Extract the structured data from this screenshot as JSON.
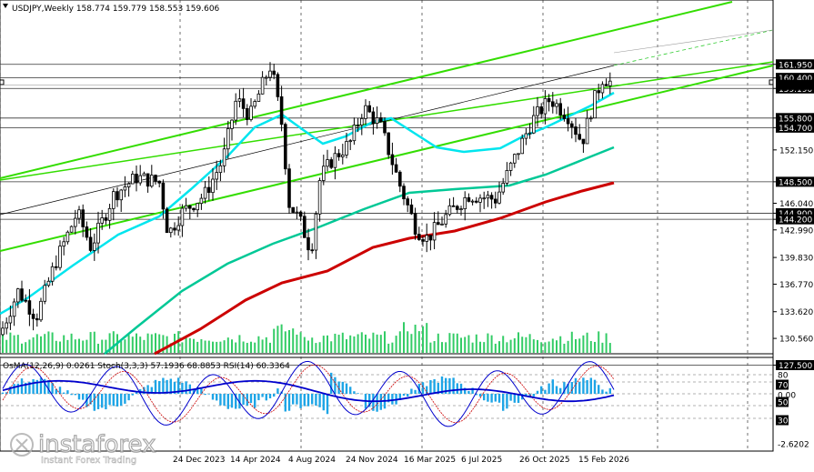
{
  "header": {
    "symbol": "USDJPY,Weekly",
    "open": "158.774",
    "high": "159.779",
    "low": "158.553",
    "close": "159.606"
  },
  "indicator_header": {
    "osma": "OsMA(12,26,9) 0.0261",
    "stoch": "Stoch(3,3,3) 57.1936 68.8853",
    "rsi": "RSI(14) 60.3364"
  },
  "watermark": {
    "brand": "instaforex",
    "tagline": "Instant Forex Trading"
  },
  "colors": {
    "candle": "#000000",
    "ema_short": "#00e5ee",
    "ema_mid": "#00c896",
    "ema_long": "#cc0000",
    "channel": "#33dd00",
    "trend": "#000000",
    "volume": "#33cc66",
    "osma_hist": "#1ea5e6",
    "stoch_main": "#0000cc",
    "stoch_signal": "#cc0000",
    "rsi": "#9933cc",
    "current_price_box": "#000000",
    "level_box": "#000000"
  },
  "chart_data": {
    "type": "candlestick",
    "price_axis": [
      "161.950",
      "160.400",
      "159.190",
      "155.800",
      "154.700",
      "152.150",
      "148.500",
      "146.040",
      "144.900",
      "144.200",
      "142.990",
      "139.830",
      "136.770",
      "133.620",
      "130.560",
      "127.500"
    ],
    "levels": [
      161.95,
      160.4,
      159.19,
      155.8,
      154.7,
      148.5,
      144.9,
      144.2,
      127.5
    ],
    "current_price": 159.606,
    "ylim": [
      127.5,
      164.6
    ],
    "x_ticks": [
      "24 Dec 2023",
      "14 Apr 2024",
      "4 Aug 2024",
      "24 Nov 2024",
      "16 Mar 2025",
      "6 Jul 2025",
      "26 Oct 2025",
      "15 Feb 2026"
    ],
    "indicator_axis": [
      "80",
      "70",
      "0.00",
      "50",
      "30",
      "-2.6202"
    ]
  }
}
